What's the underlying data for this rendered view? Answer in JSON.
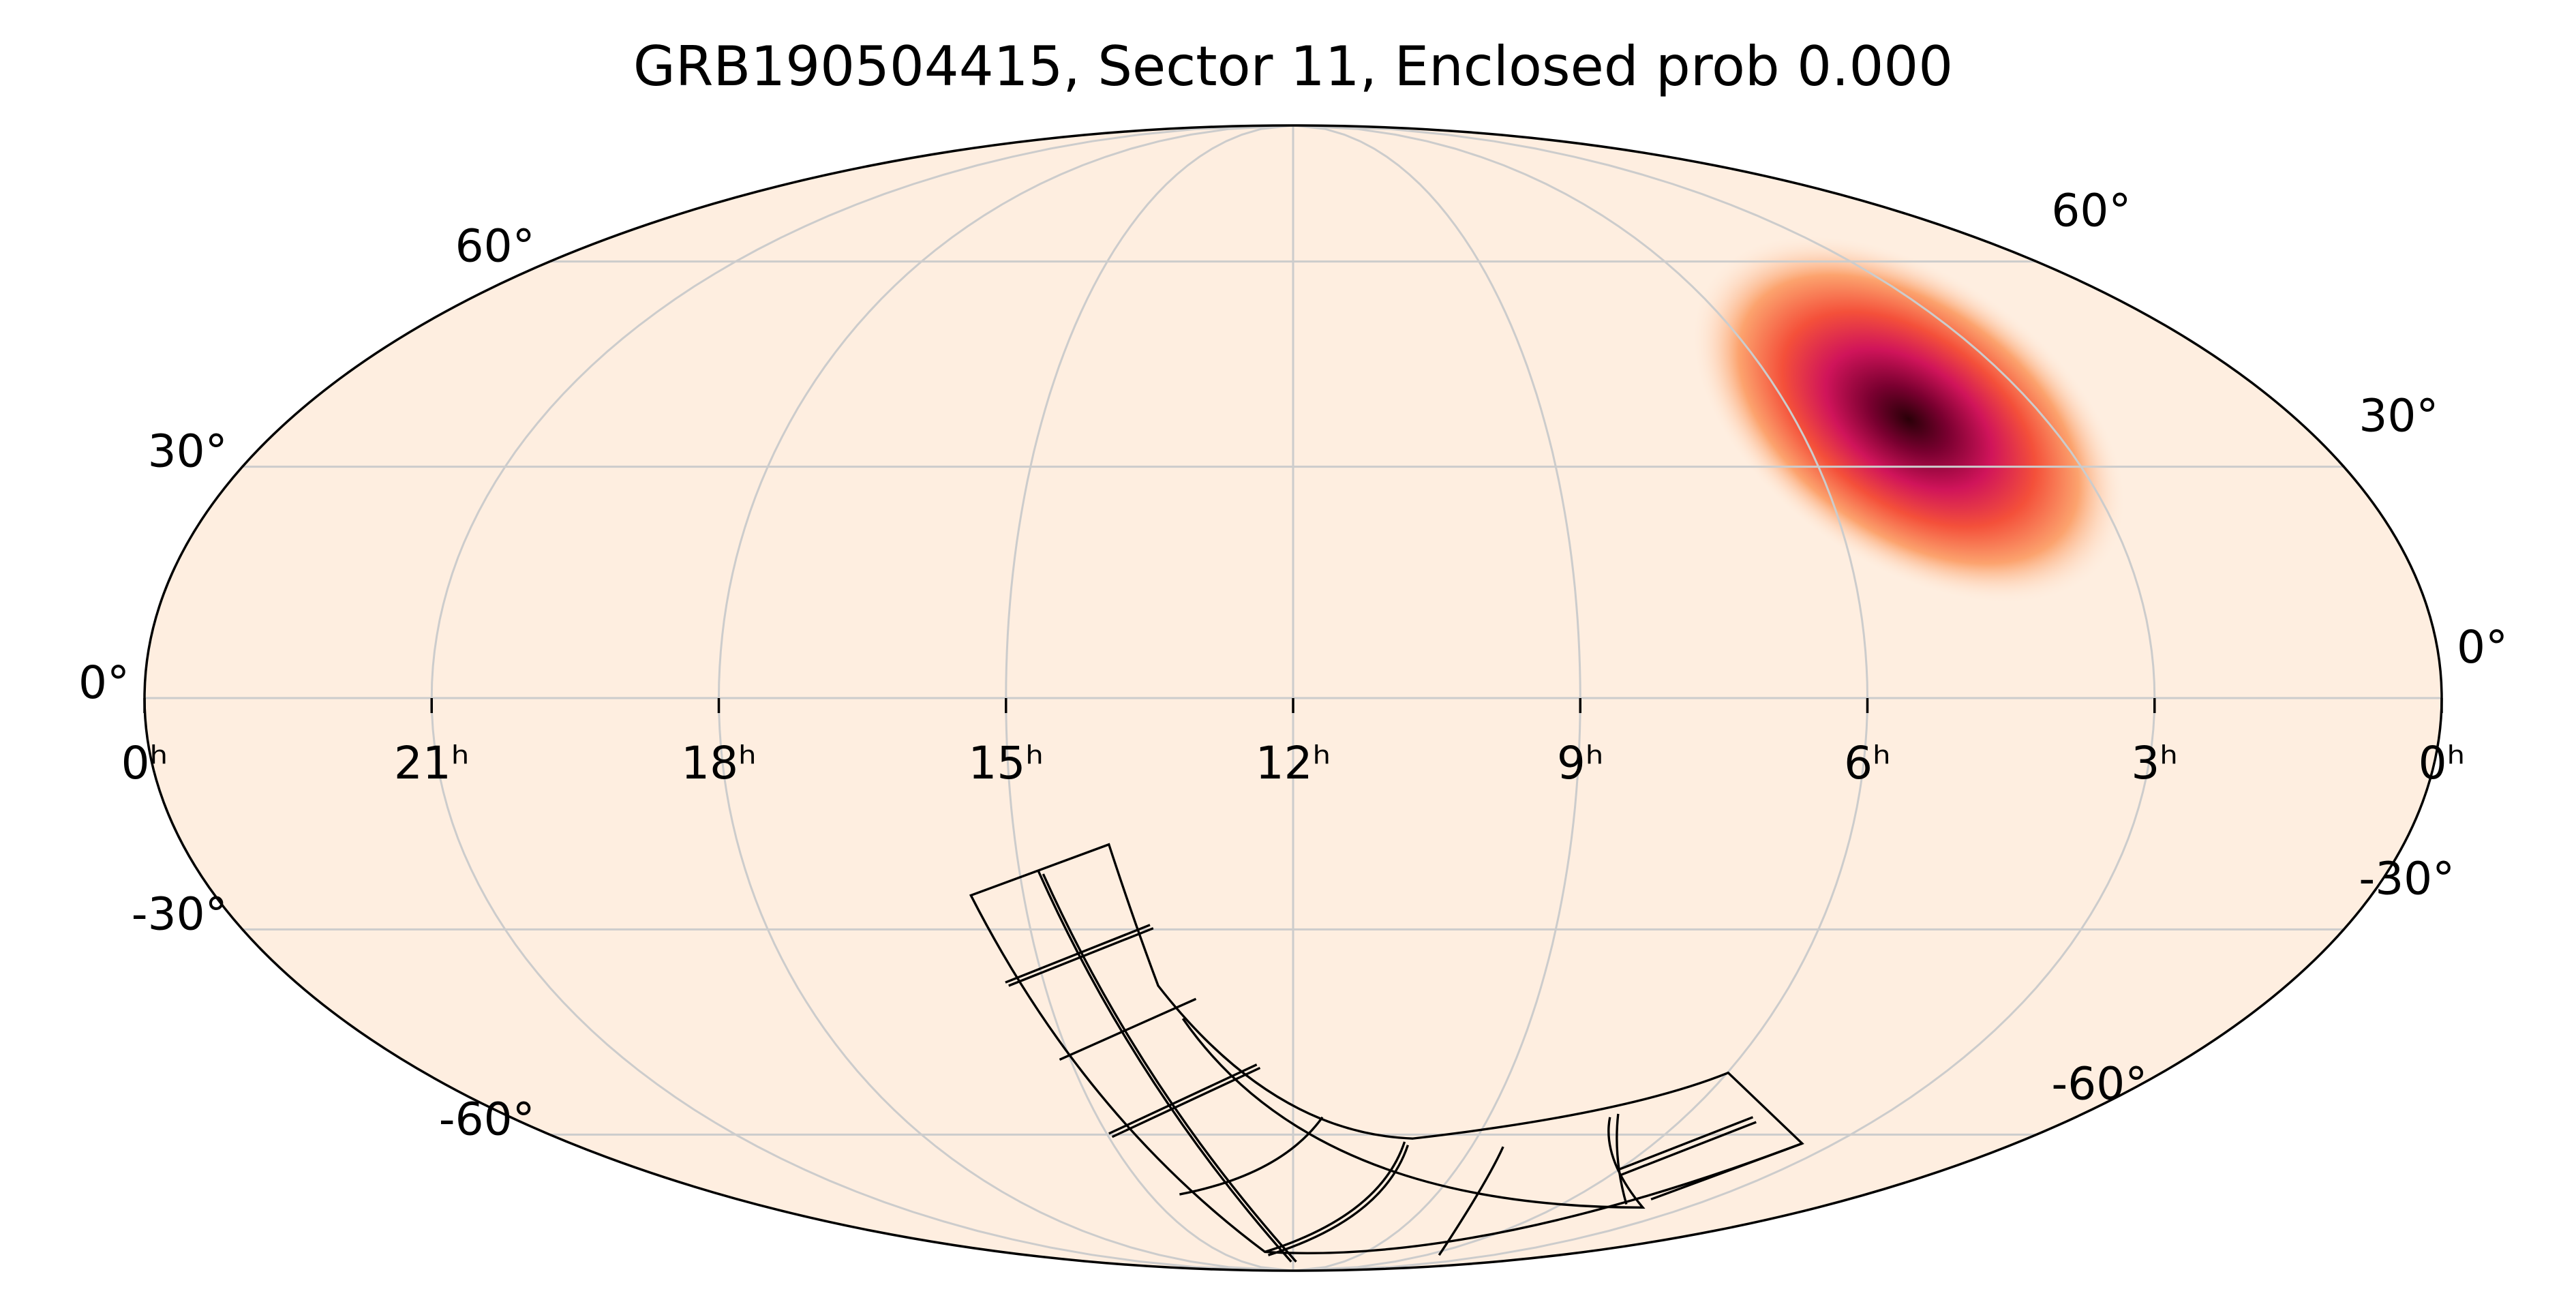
{
  "chart_data": {
    "type": "mollweide",
    "title": "GRB190504415, Sector 11, Enclosed prob 0.000",
    "xticks": [
      {
        "value": 24,
        "label": "0ʰ"
      },
      {
        "value": 21,
        "label": "21ʰ"
      },
      {
        "value": 18,
        "label": "18ʰ"
      },
      {
        "value": 15,
        "label": "15ʰ"
      },
      {
        "value": 12,
        "label": "12ʰ"
      },
      {
        "value": 9,
        "label": "9ʰ"
      },
      {
        "value": 6,
        "label": "6ʰ"
      },
      {
        "value": 3,
        "label": "3ʰ"
      },
      {
        "value": 0,
        "label": "0ʰ"
      }
    ],
    "yticks": [
      {
        "value": 60,
        "label": "60°"
      },
      {
        "value": 30,
        "label": "30°"
      },
      {
        "value": 0,
        "label": "0°"
      },
      {
        "value": -30,
        "label": "-30°"
      },
      {
        "value": -60,
        "label": "-60°"
      }
    ],
    "xlim": [
      24,
      0
    ],
    "ylim": [
      -90,
      90
    ],
    "grid": true
  }
}
